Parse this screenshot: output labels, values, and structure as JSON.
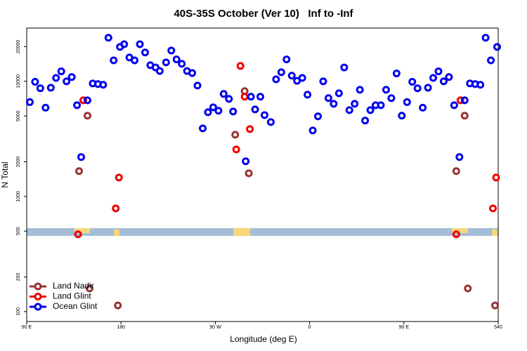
{
  "chart_data": {
    "type": "scatter",
    "title": "40S-35S October (Ver 10)   Inf to -Inf",
    "x_label": "Longitude (deg E)",
    "y_label": "N Total",
    "xlim": [
      90,
      540
    ],
    "xticks": [
      {
        "value": 90,
        "label": "90 E"
      },
      180,
      {
        "value": 270,
        "label": "90 W"
      },
      {
        "value": 360,
        "label": "0"
      },
      {
        "value": 450,
        "label": "90 E"
      },
      540
    ],
    "ylim": [
      82,
      29000
    ],
    "yscale": "log",
    "yticks": [
      100,
      200,
      500,
      1000,
      2000,
      5000,
      10000,
      20000
    ],
    "legend": "bottom-left",
    "series": [
      {
        "name": "Land Nadir",
        "color": "#993333",
        "x": [
          140,
          148,
          150,
          177,
          289,
          298,
          302,
          500,
          508,
          511,
          537
        ],
        "values": [
          1660,
          5030,
          159,
          113,
          3440,
          8220,
          1590,
          1660,
          5030,
          159,
          113
        ]
      },
      {
        "name": "Land Glint",
        "color": "#ee0000",
        "x": [
          139,
          144,
          175,
          178,
          294,
          298,
          290,
          303,
          500,
          504,
          535,
          538
        ],
        "values": [
          469,
          6840,
          787,
          1460,
          13600,
          7350,
          2560,
          3850,
          469,
          6840,
          787,
          1460
        ]
      },
      {
        "name": "Ocean Glint",
        "color": "#0000ee",
        "x": [
          93,
          98,
          103,
          108,
          113,
          118,
          123,
          128,
          133,
          138,
          142,
          148,
          153,
          158,
          163,
          168,
          173,
          179,
          183,
          188,
          193,
          198,
          203,
          208,
          213,
          217,
          223,
          228,
          233,
          238,
          243,
          248,
          253,
          258,
          263,
          268,
          273,
          278,
          283,
          287,
          299,
          304,
          308,
          313,
          317,
          323,
          328,
          333,
          338,
          343,
          348,
          353,
          358,
          363,
          368,
          373,
          378,
          383,
          388,
          393,
          398,
          403,
          408,
          413,
          418,
          423,
          428,
          433,
          438,
          443,
          448,
          453,
          458,
          463,
          468,
          473,
          478,
          483,
          488,
          493,
          498,
          503,
          508,
          513,
          518,
          523,
          528,
          533,
          539
        ],
        "values": [
          6600,
          9900,
          8700,
          5900,
          8800,
          10700,
          12200,
          10000,
          10900,
          6200,
          2200,
          6840,
          9590,
          9460,
          9330,
          23900,
          15200,
          19900,
          21000,
          16100,
          15200,
          21000,
          17800,
          13800,
          13200,
          12300,
          14600,
          18500,
          15500,
          14200,
          12300,
          11800,
          9190,
          3900,
          5390,
          5950,
          5550,
          7770,
          7040,
          5470,
          2020,
          7350,
          5700,
          7350,
          5090,
          4430,
          10400,
          12000,
          15500,
          11200,
          10100,
          10700,
          7660,
          3740,
          4960,
          10000,
          7150,
          6380,
          7870,
          13200,
          5620,
          6380,
          8450,
          4560,
          5620,
          6200,
          6200,
          8450,
          7150,
          11700,
          5030,
          6600,
          9900,
          8700,
          5900,
          8800,
          10700,
          12200,
          10000,
          10900,
          6200,
          2200,
          6840,
          9590,
          9460,
          9330,
          23900,
          15200,
          19900
        ]
      }
    ]
  }
}
